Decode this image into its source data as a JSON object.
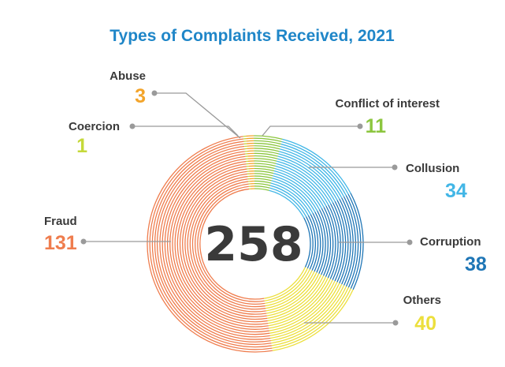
{
  "chart_data": {
    "type": "pie",
    "title": "Types of Complaints Received, 2021",
    "total": "258",
    "categories": [
      "Abuse",
      "Conflict of interest",
      "Collusion",
      "Corruption",
      "Others",
      "Fraud",
      "Coercion"
    ],
    "values": [
      3,
      11,
      34,
      38,
      40,
      131,
      1
    ],
    "value_labels": [
      "3",
      "11",
      "34",
      "38",
      "40",
      "131",
      "1"
    ],
    "colors": [
      "#f3a42a",
      "#8cc63f",
      "#42b6e6",
      "#1f76b6",
      "#ecdf3c",
      "#ef7d4e",
      "#c5d93a"
    ],
    "title_color": "#1f86c8",
    "label_color": "#3a3a3a",
    "connector_color": "#9a9a9a",
    "style": "donut with concentric ring lines",
    "legend": "none (callout labels)"
  }
}
